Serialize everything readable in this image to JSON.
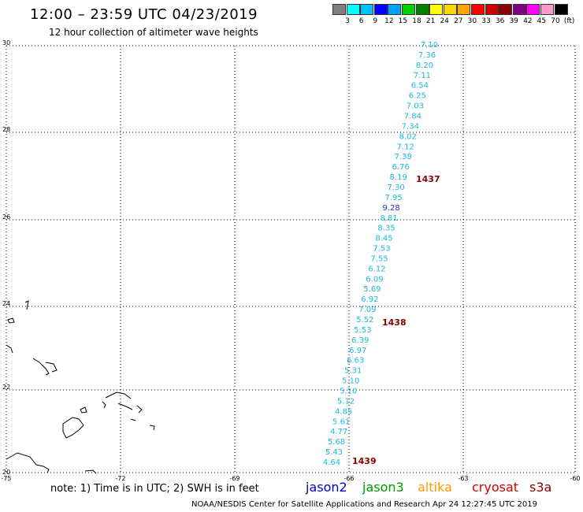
{
  "title": "12:00 – 23:59 UTC 04/23/2019",
  "subtitle": "12 hour collection of altimeter wave heights",
  "legend": {
    "colors": [
      "#808080",
      "#00ffff",
      "#00bfff",
      "#0000ff",
      "#00a0ff",
      "#00d000",
      "#008000",
      "#ffff00",
      "#ffd700",
      "#ffa500",
      "#ff0000",
      "#cc0000",
      "#8b0000",
      "#800080",
      "#ff00ff",
      "#ff99cc",
      "#000000"
    ],
    "ticks": [
      "3",
      "6",
      "9",
      "12",
      "15",
      "18",
      "21",
      "24",
      "27",
      "30",
      "33",
      "36",
      "39",
      "42",
      "45",
      "70",
      "(ft)"
    ]
  },
  "axes": {
    "y_ticks": [
      "30",
      "28",
      "26",
      "24",
      "22",
      "20"
    ],
    "x_ticks": [
      "-75",
      "-72",
      "-69",
      "-66",
      "-63",
      "-60"
    ]
  },
  "observations": [
    {
      "v": "7.10",
      "c": "#1ab8dc"
    },
    {
      "v": "7.36",
      "c": "#1ab8dc"
    },
    {
      "v": "8.20",
      "c": "#1ab8dc"
    },
    {
      "v": "7.11",
      "c": "#1ab8dc"
    },
    {
      "v": "6.54",
      "c": "#1ab8dc"
    },
    {
      "v": "6.25",
      "c": "#1ab8dc"
    },
    {
      "v": "7.03",
      "c": "#1ab8dc"
    },
    {
      "v": "7.84",
      "c": "#1ab8dc"
    },
    {
      "v": "7.34",
      "c": "#1ab8dc"
    },
    {
      "v": "8.02",
      "c": "#1ab8dc"
    },
    {
      "v": "7.12",
      "c": "#1ab8dc"
    },
    {
      "v": "7.38",
      "c": "#1ab8dc"
    },
    {
      "v": "6.76",
      "c": "#1ab8dc"
    },
    {
      "v": "8.19",
      "c": "#1ab8dc"
    },
    {
      "v": "7.30",
      "c": "#1ab8dc"
    },
    {
      "v": "7.95",
      "c": "#1ab8dc"
    },
    {
      "v": "9.28",
      "c": "#2233cc"
    },
    {
      "v": "8.81",
      "c": "#1ab8dc"
    },
    {
      "v": "8.35",
      "c": "#1ab8dc"
    },
    {
      "v": "8.45",
      "c": "#1ab8dc"
    },
    {
      "v": "7.53",
      "c": "#1ab8dc"
    },
    {
      "v": "7.55",
      "c": "#1ab8dc"
    },
    {
      "v": "6.12",
      "c": "#1ab8dc"
    },
    {
      "v": "6.09",
      "c": "#1ab8dc"
    },
    {
      "v": "5.69",
      "c": "#1ab8dc"
    },
    {
      "v": "6.92",
      "c": "#1ab8dc"
    },
    {
      "v": "7.09",
      "c": "#1ab8dc"
    },
    {
      "v": "5.52",
      "c": "#1ab8dc"
    },
    {
      "v": "5.53",
      "c": "#1ab8dc"
    },
    {
      "v": "6.39",
      "c": "#1ab8dc"
    },
    {
      "v": "6.97",
      "c": "#1ab8dc"
    },
    {
      "v": "6.63",
      "c": "#1ab8dc"
    },
    {
      "v": "5.31",
      "c": "#1ab8dc"
    },
    {
      "v": "5.10",
      "c": "#1ab8dc"
    },
    {
      "v": "5.10",
      "c": "#1ab8dc"
    },
    {
      "v": "5.12",
      "c": "#1ab8dc"
    },
    {
      "v": "4.85",
      "c": "#1ab8dc"
    },
    {
      "v": "5.61",
      "c": "#1ab8dc"
    },
    {
      "v": "4.77",
      "c": "#1ab8dc"
    },
    {
      "v": "5.68",
      "c": "#1ab8dc"
    },
    {
      "v": "5.43",
      "c": "#1ab8dc"
    },
    {
      "v": "4.64",
      "c": "#1ab8dc"
    }
  ],
  "pass_times": [
    "1437",
    "1438",
    "1439"
  ],
  "note": "note: 1) Time is in UTC; 2) SWH is in feet",
  "satellites": [
    {
      "name": "jason2",
      "color": "#0000cc"
    },
    {
      "name": "jason3",
      "color": "#009900"
    },
    {
      "name": "altika",
      "color": "#ff9900"
    },
    {
      "name": "cryosat",
      "color": "#cc0000"
    },
    {
      "name": "s3a",
      "color": "#8b0000"
    }
  ],
  "footer": "NOAA/NESDIS Center for Satellite Applications and Research    Apr 24 12:27:45 UTC 2019"
}
